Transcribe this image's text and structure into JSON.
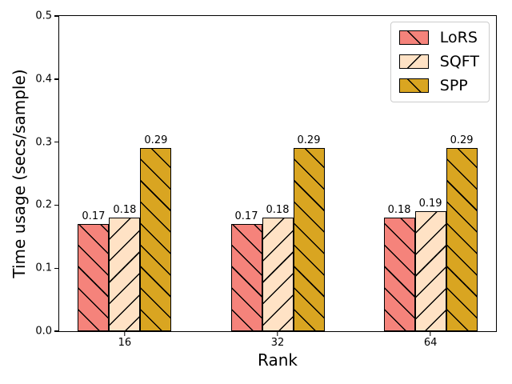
{
  "chart_data": {
    "type": "bar",
    "title": "",
    "xlabel": "Rank",
    "ylabel": "Time usage (secs/sample)",
    "categories": [
      "16",
      "32",
      "64"
    ],
    "series": [
      {
        "name": "LoRS",
        "values": [
          0.17,
          0.17,
          0.18
        ],
        "labels": [
          "0.17",
          "0.17",
          "0.18"
        ],
        "color": "#f5837b",
        "hatch": "\\"
      },
      {
        "name": "SQFT",
        "values": [
          0.18,
          0.18,
          0.19
        ],
        "labels": [
          "0.18",
          "0.18",
          "0.19"
        ],
        "color": "#ffe2c5",
        "hatch": "/"
      },
      {
        "name": "SPP",
        "values": [
          0.29,
          0.29,
          0.29
        ],
        "labels": [
          "0.29",
          "0.29",
          "0.29"
        ],
        "color": "#d9a521",
        "hatch": "\\"
      }
    ],
    "ylim": [
      0.0,
      0.5
    ],
    "yticks": [
      "0.0",
      "0.1",
      "0.2",
      "0.3",
      "0.4",
      "0.5"
    ],
    "grid": false,
    "legend_position": "upper right",
    "bar_edge_color": "#000000",
    "legend_border_color": "#cccccc"
  }
}
